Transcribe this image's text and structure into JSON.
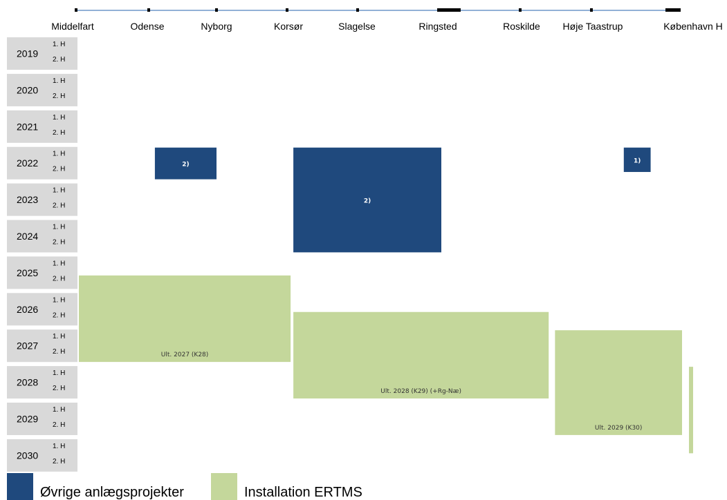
{
  "chart_data": {
    "type": "gantt",
    "stations": [
      "Middelfart",
      "Odense",
      "Nyborg",
      "Korsør",
      "Slagelse",
      "Ringsted",
      "Roskilde",
      "Høje Taastrup",
      "København H"
    ],
    "years": [
      "2019",
      "2020",
      "2021",
      "2022",
      "2023",
      "2024",
      "2025",
      "2026",
      "2027",
      "2028",
      "2029",
      "2030"
    ],
    "halves": [
      "1. H",
      "2. H"
    ],
    "categories": [
      {
        "key": "ovrige",
        "name": "Øvrige anlægsprojekter",
        "color": "#1f497d"
      },
      {
        "key": "ertms",
        "name": "Installation ERTMS",
        "color": "#c4d79b"
      }
    ],
    "bars": [
      {
        "category": "ovrige",
        "from_station": 1.05,
        "to_station": 2.0,
        "start": 2022.0,
        "end": 2023.0,
        "label": "2)"
      },
      {
        "category": "ovrige",
        "from_station": 3.05,
        "to_station": 5.05,
        "start": 2022.0,
        "end": 2025.0,
        "label": "2)"
      },
      {
        "category": "ovrige",
        "from_station": 7.4,
        "to_station": 7.8,
        "start": 2022.0,
        "end": 2022.8,
        "label": "1)"
      },
      {
        "category": "ertms",
        "from_station": 0.0,
        "to_station": 3.05,
        "start": 2025.5,
        "end": 2028.0,
        "label": "Ult. 2027 (K28)"
      },
      {
        "category": "ertms",
        "from_station": 3.05,
        "to_station": 6.4,
        "start": 2026.5,
        "end": 2029.0,
        "label": "Ult. 2028 (K29) (+Rg-Næ)"
      },
      {
        "category": "ertms",
        "from_station": 6.45,
        "to_station": 8.4,
        "start": 2027.0,
        "end": 2030.0,
        "label": "Ult. 2029 (K30)"
      },
      {
        "category": "ertms",
        "from_station": 8.5,
        "to_station": 8.65,
        "start": 2028.0,
        "end": 2030.5,
        "label": ""
      }
    ]
  },
  "legend": {
    "items": [
      {
        "label": "Øvrige anlægsprojekter",
        "color": "#1f497d"
      },
      {
        "label": "Installation ERTMS",
        "color": "#c4d79b"
      }
    ]
  },
  "colors": {
    "track_line": "#4f81bd",
    "year_cell_bg": "#d9d9d9",
    "station_marker": "#000000"
  }
}
